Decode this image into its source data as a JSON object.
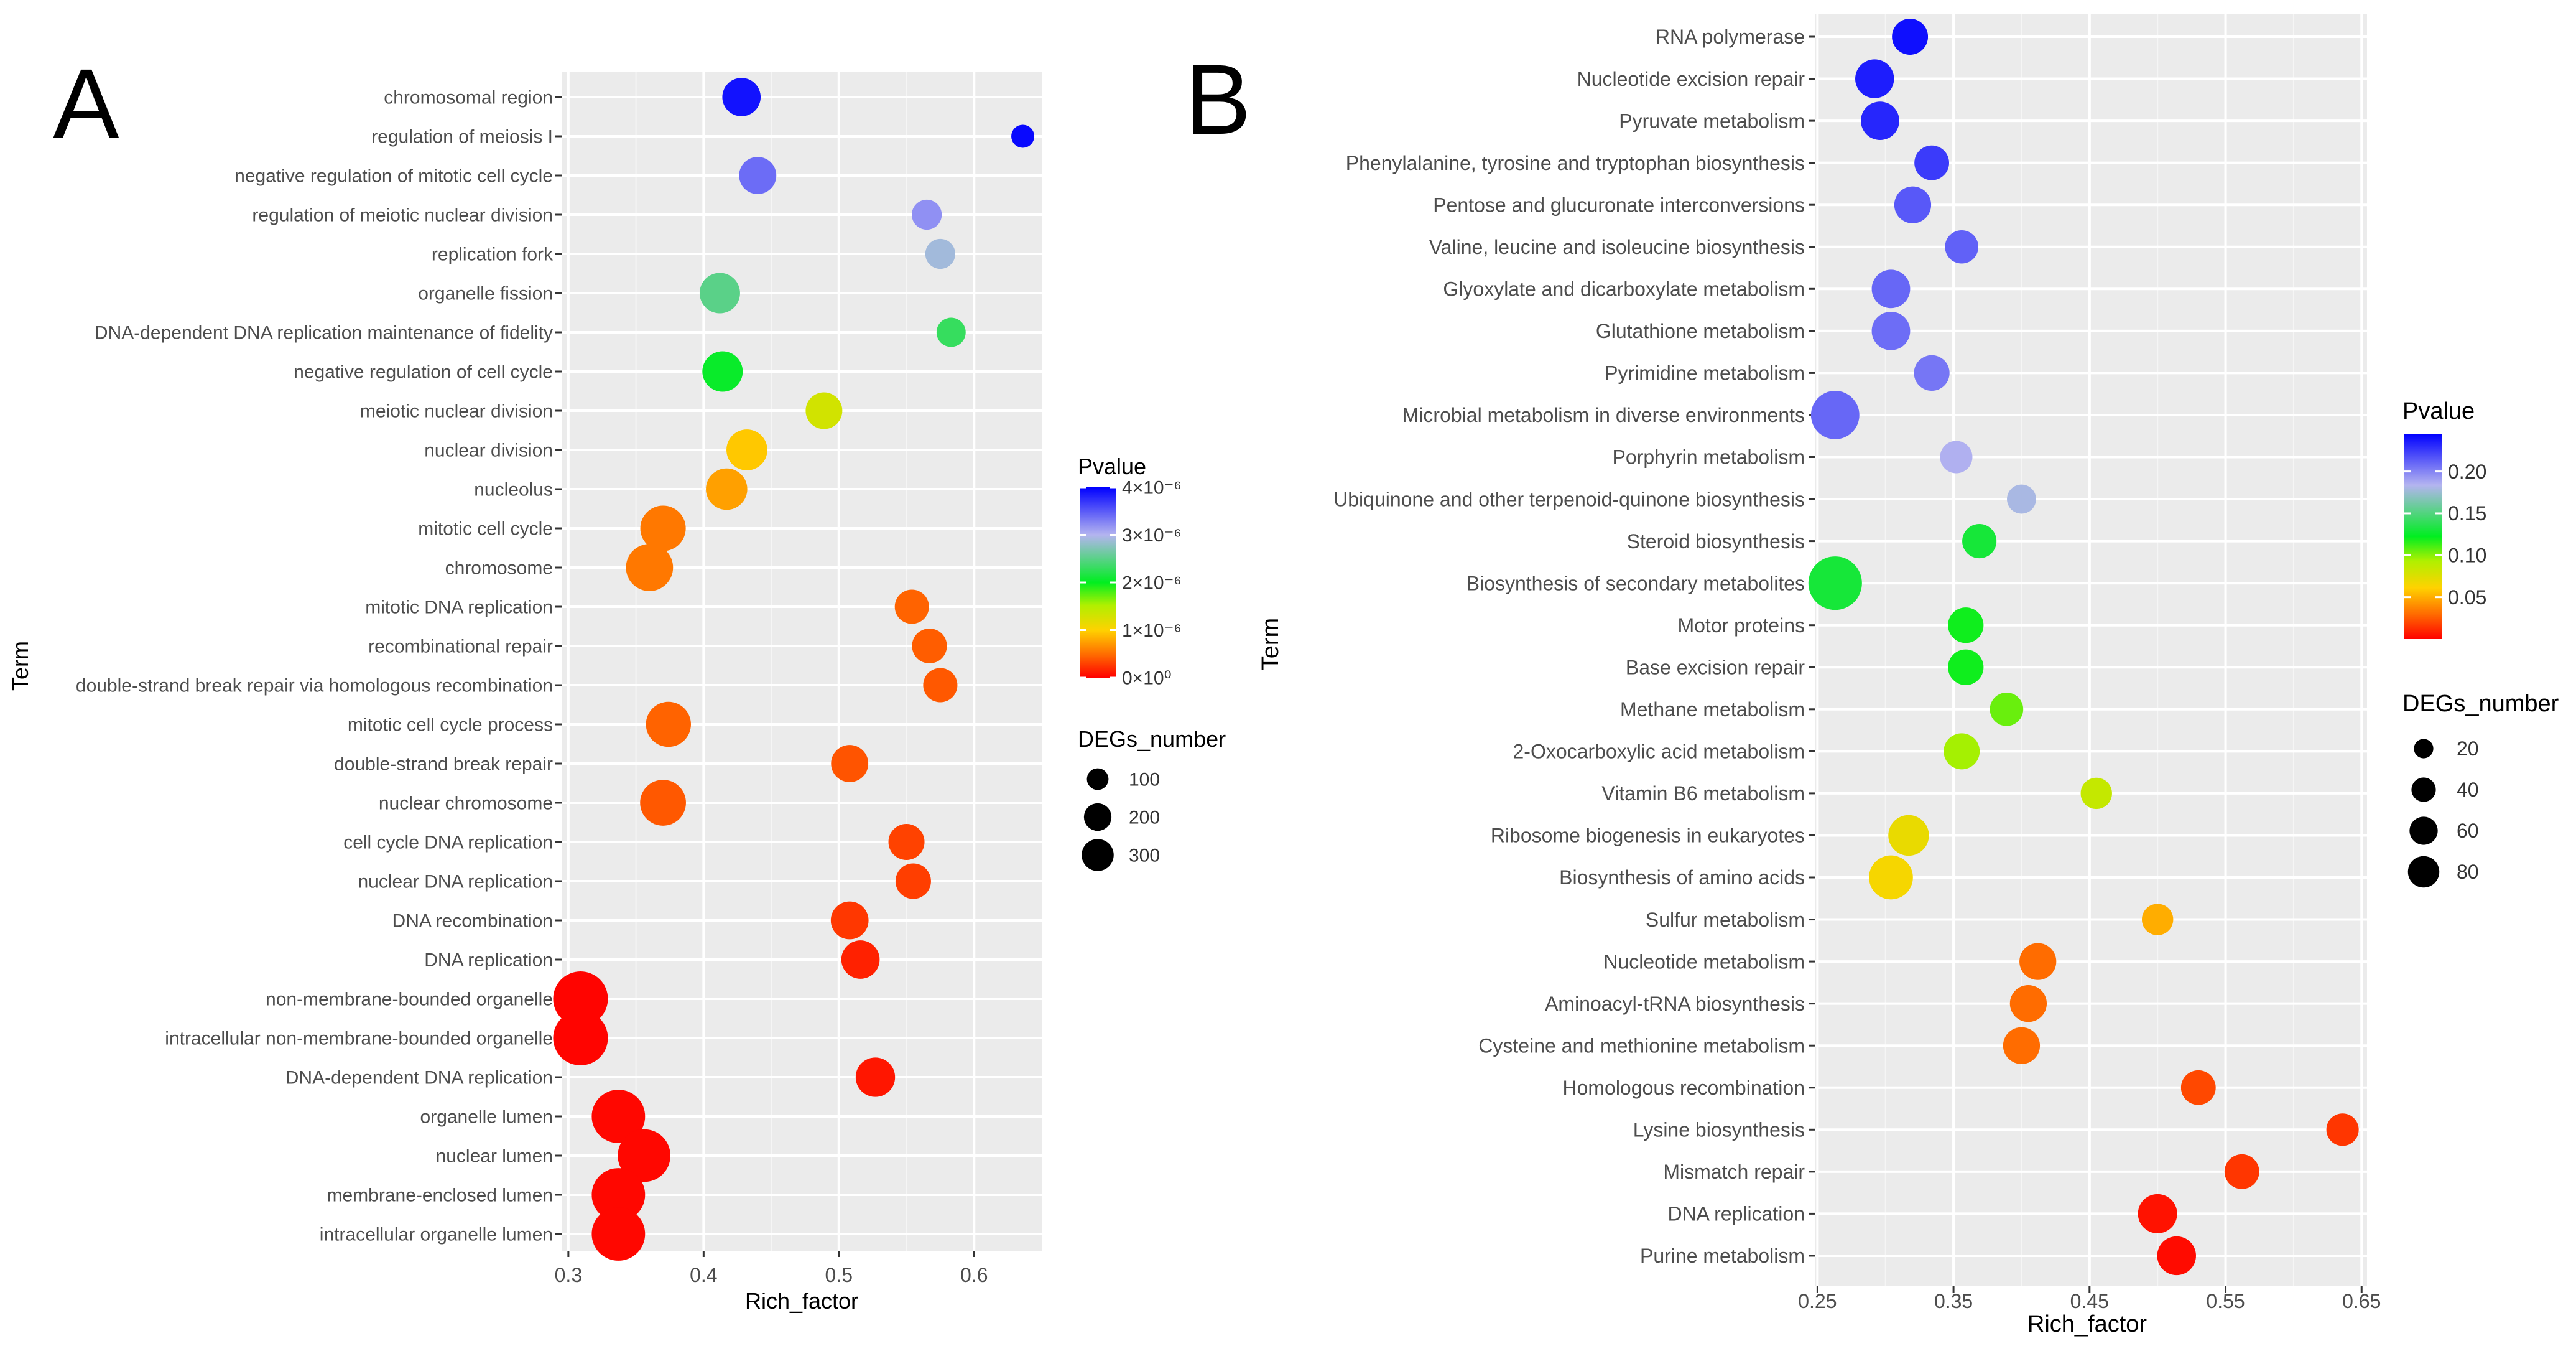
{
  "figure": {
    "panels": [
      "A",
      "B"
    ]
  },
  "chart_data": [
    {
      "panel": "A",
      "type": "scatter",
      "xlabel": "Rich_factor",
      "ylabel": "Term",
      "xlim": [
        0.295,
        0.65
      ],
      "xticks": [
        0.3,
        0.4,
        0.5,
        0.6
      ],
      "xtick_labels": [
        "0.3",
        "0.4",
        "0.5",
        "0.6"
      ],
      "grid": true,
      "legend_color": {
        "title": "Pvalue",
        "range": [
          0,
          4e-06
        ],
        "ticks": [
          0,
          1e-06,
          2e-06,
          3e-06,
          4e-06
        ],
        "tick_labels": [
          "0×10⁰",
          "1×10⁻⁶",
          "2×10⁻⁶",
          "3×10⁻⁶",
          "4×10⁻⁶"
        ],
        "low_color": "#ff0000",
        "high_color": "#0000ff"
      },
      "legend_size": {
        "title": "DEGs_number",
        "values": [
          100,
          200,
          300
        ],
        "labels": [
          "100",
          "200",
          "300"
        ]
      },
      "points": [
        {
          "term": "chromosomal region",
          "x": 0.428,
          "pvalue": 3.9e-06,
          "size": 120
        },
        {
          "term": "regulation of meiosis I",
          "x": 0.636,
          "pvalue": 3.95e-06,
          "size": 20
        },
        {
          "term": "negative regulation of mitotic cell cycle",
          "x": 0.44,
          "pvalue": 3.4e-06,
          "size": 110
        },
        {
          "term": "regulation of meiotic nuclear division",
          "x": 0.565,
          "pvalue": 3.2e-06,
          "size": 55
        },
        {
          "term": "replication fork",
          "x": 0.575,
          "pvalue": 2.9e-06,
          "size": 55
        },
        {
          "term": "organelle fission",
          "x": 0.412,
          "pvalue": 2.5e-06,
          "size": 140
        },
        {
          "term": "DNA-dependent DNA replication maintenance of fidelity",
          "x": 0.583,
          "pvalue": 2.3e-06,
          "size": 50
        },
        {
          "term": "negative regulation of cell cycle",
          "x": 0.414,
          "pvalue": 2.05e-06,
          "size": 140
        },
        {
          "term": "meiotic nuclear division",
          "x": 0.489,
          "pvalue": 1.3e-06,
          "size": 105
        },
        {
          "term": "nuclear division",
          "x": 0.432,
          "pvalue": 9.5e-07,
          "size": 145
        },
        {
          "term": "nucleolus",
          "x": 0.417,
          "pvalue": 7.5e-07,
          "size": 150
        },
        {
          "term": "mitotic cell cycle",
          "x": 0.37,
          "pvalue": 5.5e-07,
          "size": 195
        },
        {
          "term": "chromosome",
          "x": 0.36,
          "pvalue": 5.5e-07,
          "size": 215
        },
        {
          "term": "mitotic DNA replication",
          "x": 0.554,
          "pvalue": 4.5e-07,
          "size": 85
        },
        {
          "term": "recombinational repair",
          "x": 0.567,
          "pvalue": 4.2e-07,
          "size": 90
        },
        {
          "term": "double-strand break repair via homologous recombination",
          "x": 0.575,
          "pvalue": 4e-07,
          "size": 85
        },
        {
          "term": "mitotic cell cycle process",
          "x": 0.374,
          "pvalue": 4.5e-07,
          "size": 190
        },
        {
          "term": "double-strand break repair",
          "x": 0.508,
          "pvalue": 3.8e-07,
          "size": 110
        },
        {
          "term": "nuclear chromosome",
          "x": 0.37,
          "pvalue": 4e-07,
          "size": 200
        },
        {
          "term": "cell cycle DNA replication",
          "x": 0.55,
          "pvalue": 3e-07,
          "size": 100
        },
        {
          "term": "nuclear DNA replication",
          "x": 0.555,
          "pvalue": 2.8e-07,
          "size": 95
        },
        {
          "term": "DNA recombination",
          "x": 0.508,
          "pvalue": 2.5e-07,
          "size": 115
        },
        {
          "term": "DNA replication",
          "x": 0.516,
          "pvalue": 1.5e-07,
          "size": 120
        },
        {
          "term": "non-membrane-bounded organelle",
          "x": 0.309,
          "pvalue": 2e-08,
          "size": 320
        },
        {
          "term": "intracellular non-membrane-bounded organelle",
          "x": 0.309,
          "pvalue": 2e-08,
          "size": 320
        },
        {
          "term": "DNA-dependent DNA replication",
          "x": 0.527,
          "pvalue": 1e-07,
          "size": 130
        },
        {
          "term": "organelle lumen",
          "x": 0.337,
          "pvalue": 3e-08,
          "size": 300
        },
        {
          "term": "nuclear lumen",
          "x": 0.356,
          "pvalue": 3e-08,
          "size": 290
        },
        {
          "term": "membrane-enclosed lumen",
          "x": 0.337,
          "pvalue": 3e-08,
          "size": 300
        },
        {
          "term": "intracellular organelle lumen",
          "x": 0.337,
          "pvalue": 3e-08,
          "size": 300
        }
      ]
    },
    {
      "panel": "B",
      "type": "scatter",
      "xlabel": "Rich_factor",
      "ylabel": "Term",
      "xlim": [
        0.248,
        0.654
      ],
      "xticks": [
        0.25,
        0.35,
        0.45,
        0.55,
        0.65
      ],
      "xtick_labels": [
        "0.25",
        "0.35",
        "0.45",
        "0.55",
        "0.65"
      ],
      "grid": true,
      "legend_color": {
        "title": "Pvalue",
        "range": [
          0,
          0.245
        ],
        "ticks": [
          0.05,
          0.1,
          0.15,
          0.2
        ],
        "tick_labels": [
          "0.05",
          "0.10",
          "0.15",
          "0.20"
        ],
        "low_color": "#ff0000",
        "high_color": "#0000ff"
      },
      "legend_size": {
        "title": "DEGs_number",
        "values": [
          20,
          40,
          60,
          80
        ],
        "labels": [
          "20",
          "40",
          "60",
          "80"
        ]
      },
      "points": [
        {
          "term": "RNA polymerase",
          "x": 0.318,
          "pvalue": 0.24,
          "size": 28
        },
        {
          "term": "Nucleotide excision repair",
          "x": 0.292,
          "pvalue": 0.235,
          "size": 35
        },
        {
          "term": "Pyruvate metabolism",
          "x": 0.296,
          "pvalue": 0.232,
          "size": 34
        },
        {
          "term": "Phenylalanine, tyrosine and tryptophan biosynthesis",
          "x": 0.334,
          "pvalue": 0.225,
          "size": 25
        },
        {
          "term": "Pentose and glucuronate interconversions",
          "x": 0.32,
          "pvalue": 0.215,
          "size": 30
        },
        {
          "term": "Valine, leucine and isoleucine biosynthesis",
          "x": 0.356,
          "pvalue": 0.212,
          "size": 22
        },
        {
          "term": "Glyoxylate and dicarboxylate metabolism",
          "x": 0.304,
          "pvalue": 0.21,
          "size": 34
        },
        {
          "term": "Glutathione metabolism",
          "x": 0.304,
          "pvalue": 0.208,
          "size": 34
        },
        {
          "term": "Pyrimidine metabolism",
          "x": 0.334,
          "pvalue": 0.205,
          "size": 27
        },
        {
          "term": "Microbial metabolism in diverse environments",
          "x": 0.263,
          "pvalue": 0.21,
          "size": 65
        },
        {
          "term": "Porphyrin metabolism",
          "x": 0.352,
          "pvalue": 0.185,
          "size": 20
        },
        {
          "term": "Ubiquinone and other terpenoid-quinone biosynthesis",
          "x": 0.4,
          "pvalue": 0.18,
          "size": 14
        },
        {
          "term": "Steroid biosynthesis",
          "x": 0.369,
          "pvalue": 0.13,
          "size": 24
        },
        {
          "term": "Biosynthesis of secondary metabolites",
          "x": 0.263,
          "pvalue": 0.13,
          "size": 85
        },
        {
          "term": "Motor proteins",
          "x": 0.359,
          "pvalue": 0.12,
          "size": 27
        },
        {
          "term": "Base excision repair",
          "x": 0.359,
          "pvalue": 0.12,
          "size": 27
        },
        {
          "term": "Methane metabolism",
          "x": 0.389,
          "pvalue": 0.105,
          "size": 22
        },
        {
          "term": "2-Oxocarboxylic acid metabolism",
          "x": 0.356,
          "pvalue": 0.095,
          "size": 28
        },
        {
          "term": "Vitamin B6 metabolism",
          "x": 0.455,
          "pvalue": 0.085,
          "size": 18
        },
        {
          "term": "Ribosome biogenesis in eukaryotes",
          "x": 0.317,
          "pvalue": 0.07,
          "size": 40
        },
        {
          "term": "Biosynthesis of amino acids",
          "x": 0.304,
          "pvalue": 0.065,
          "size": 50
        },
        {
          "term": "Sulfur metabolism",
          "x": 0.5,
          "pvalue": 0.05,
          "size": 18
        },
        {
          "term": "Nucleotide metabolism",
          "x": 0.412,
          "pvalue": 0.03,
          "size": 30
        },
        {
          "term": "Aminoacyl-tRNA biosynthesis",
          "x": 0.405,
          "pvalue": 0.03,
          "size": 30
        },
        {
          "term": "Cysteine and methionine metabolism",
          "x": 0.4,
          "pvalue": 0.03,
          "size": 30
        },
        {
          "term": "Homologous recombination",
          "x": 0.53,
          "pvalue": 0.02,
          "size": 25
        },
        {
          "term": "Lysine biosynthesis",
          "x": 0.636,
          "pvalue": 0.015,
          "size": 20
        },
        {
          "term": "Mismatch repair",
          "x": 0.562,
          "pvalue": 0.015,
          "size": 25
        },
        {
          "term": "DNA replication",
          "x": 0.5,
          "pvalue": 0.005,
          "size": 36
        },
        {
          "term": "Purine metabolism",
          "x": 0.514,
          "pvalue": 0.003,
          "size": 35
        }
      ]
    }
  ]
}
